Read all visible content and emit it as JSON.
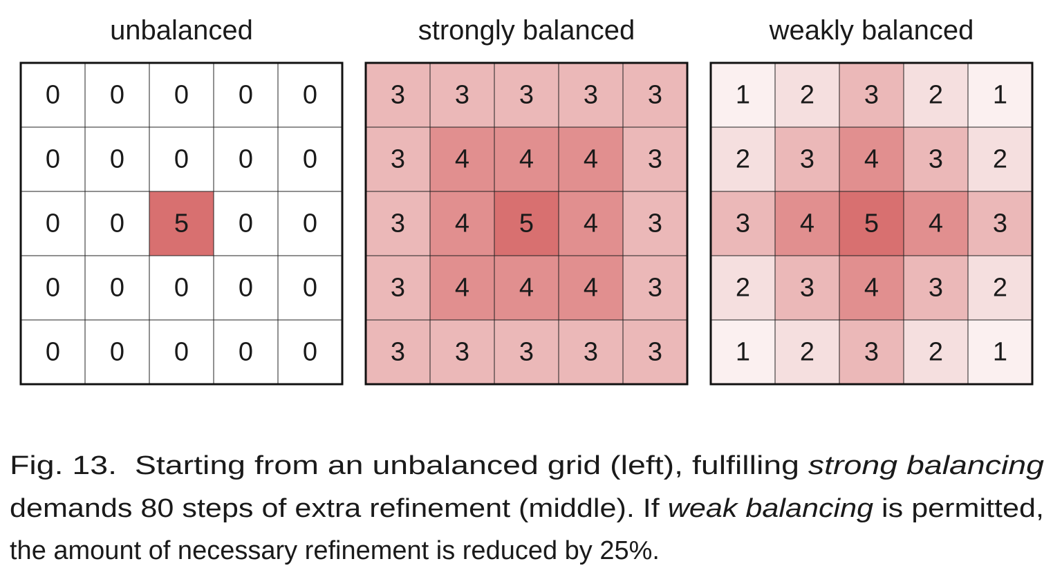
{
  "panels": [
    {
      "title": "unbalanced",
      "cells": [
        [
          0,
          0,
          0,
          0,
          0
        ],
        [
          0,
          0,
          0,
          0,
          0
        ],
        [
          0,
          0,
          5,
          0,
          0
        ],
        [
          0,
          0,
          0,
          0,
          0
        ],
        [
          0,
          0,
          0,
          0,
          0
        ]
      ]
    },
    {
      "title": "strongly balanced",
      "cells": [
        [
          3,
          3,
          3,
          3,
          3
        ],
        [
          3,
          4,
          4,
          4,
          3
        ],
        [
          3,
          4,
          5,
          4,
          3
        ],
        [
          3,
          4,
          4,
          4,
          3
        ],
        [
          3,
          3,
          3,
          3,
          3
        ]
      ]
    },
    {
      "title": "weakly balanced",
      "cells": [
        [
          1,
          2,
          3,
          2,
          1
        ],
        [
          2,
          3,
          4,
          3,
          2
        ],
        [
          3,
          4,
          5,
          4,
          3
        ],
        [
          2,
          3,
          4,
          3,
          2
        ],
        [
          1,
          2,
          3,
          2,
          1
        ]
      ]
    }
  ],
  "level_colors": [
    "#ffffff",
    "#fbf0f0",
    "#f5dfdf",
    "#ebb8b8",
    "#e18f8f",
    "#d87070"
  ],
  "caption": [
    [
      {
        "text": "Fig. 13.  Starting from an unbalanced grid (left), fulfilling ",
        "italic": false
      },
      {
        "text": "strong balancing",
        "italic": true
      }
    ],
    [
      {
        "text": "demands 80 steps of extra refinement (middle). If ",
        "italic": false
      },
      {
        "text": "weak balancing",
        "italic": true
      },
      {
        "text": " is permitted,",
        "italic": false
      }
    ],
    [
      {
        "text": "the amount of necessary refinement is reduced by 25%.",
        "italic": false
      }
    ]
  ]
}
